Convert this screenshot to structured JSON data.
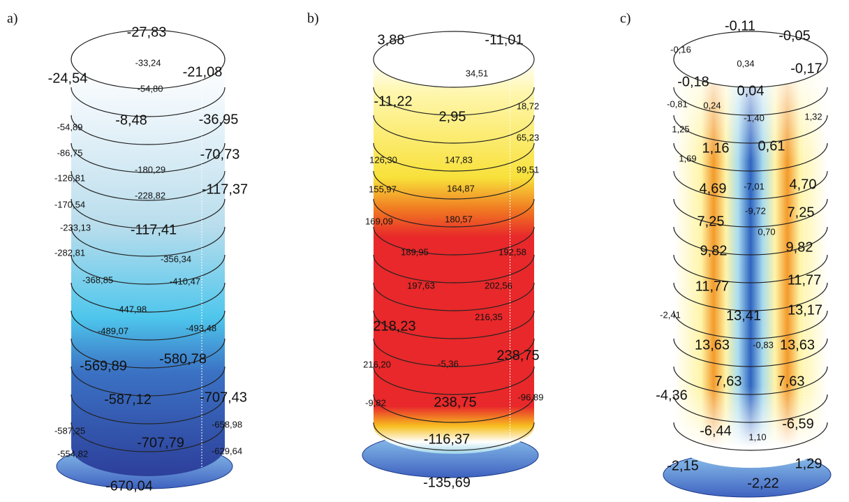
{
  "panels": [
    {
      "label": "a)",
      "values": [
        "-27,83",
        "-24,54",
        "-33,24",
        "-21,08",
        "-54,80",
        "-8,48",
        "-36,95",
        "-54,89",
        "-86,75",
        "-70,73",
        "-180,29",
        "-126,81",
        "-228,82",
        "-117,37",
        "-170,54",
        "-233,13",
        "-117,41",
        "-282,81",
        "-356,34",
        "-368,85",
        "-410,47",
        "-447,98",
        "-489,07",
        "-493,48",
        "-569,89",
        "-580,78",
        "-587,12",
        "-707,43",
        "-587,25",
        "-658,98",
        "-707,79",
        "-554,82",
        "-629,64",
        "-670,04"
      ]
    },
    {
      "label": "b)",
      "values": [
        "3,88",
        "-11,01",
        "34,51",
        "-11,22",
        "2,95",
        "18,72",
        "65,23",
        "126,30",
        "147,83",
        "99,51",
        "155,97",
        "164,87",
        "169,09",
        "180,57",
        "189,95",
        "192,58",
        "197,63",
        "202,56",
        "216,35",
        "218,23",
        "216,20",
        "-5,36",
        "238,75",
        "-9,82",
        "238,75",
        "-96,89",
        "-116,37",
        "-135,69"
      ]
    },
    {
      "label": "c)",
      "values": [
        "-0,11",
        "-0,05",
        "-0,16",
        "0,34",
        "-0,17",
        "-0,18",
        "0,04",
        "-0,81",
        "0,24",
        "-1,40",
        "1,32",
        "1,25",
        "1,16",
        "0,61",
        "1,69",
        "4,69",
        "-7,01",
        "4,70",
        "-9,72",
        "7,25",
        "7,25",
        "0,70",
        "9,82",
        "9,82",
        "11,77",
        "11,77",
        "-2,41",
        "13,41",
        "13,17",
        "13,63",
        "-0,83",
        "13,63",
        "-4,36",
        "7,63",
        "7,63",
        "-6,44",
        "1,10",
        "-6,59",
        "-2,15",
        "1,29",
        "-2,22"
      ]
    }
  ]
}
